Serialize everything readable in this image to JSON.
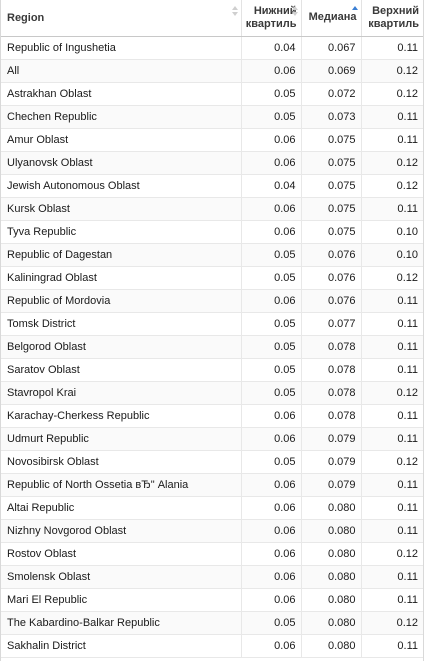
{
  "table": {
    "columns": [
      {
        "key": "region",
        "label": "Region",
        "sort": "none"
      },
      {
        "key": "lower",
        "label_line1": "Нижний",
        "label_line2": "квартиль",
        "sort": "none"
      },
      {
        "key": "median",
        "label": "Медиана",
        "sort": "ascending"
      },
      {
        "key": "upper",
        "label_line1": "Верхний",
        "label_line2": "квартиль",
        "sort": "none"
      }
    ],
    "rows": [
      {
        "region": "Republic of Ingushetia",
        "lower": "0.04",
        "median": "0.067",
        "upper": "0.11"
      },
      {
        "region": "All",
        "lower": "0.06",
        "median": "0.069",
        "upper": "0.12"
      },
      {
        "region": "Astrakhan Oblast",
        "lower": "0.05",
        "median": "0.072",
        "upper": "0.12"
      },
      {
        "region": "Chechen Republic",
        "lower": "0.05",
        "median": "0.073",
        "upper": "0.11"
      },
      {
        "region": "Amur Oblast",
        "lower": "0.06",
        "median": "0.075",
        "upper": "0.11"
      },
      {
        "region": "Ulyanovsk Oblast",
        "lower": "0.06",
        "median": "0.075",
        "upper": "0.12"
      },
      {
        "region": "Jewish Autonomous Oblast",
        "lower": "0.04",
        "median": "0.075",
        "upper": "0.12"
      },
      {
        "region": "Kursk Oblast",
        "lower": "0.06",
        "median": "0.075",
        "upper": "0.11"
      },
      {
        "region": "Tyva Republic",
        "lower": "0.06",
        "median": "0.075",
        "upper": "0.10"
      },
      {
        "region": "Republic of Dagestan",
        "lower": "0.05",
        "median": "0.076",
        "upper": "0.10"
      },
      {
        "region": "Kaliningrad Oblast",
        "lower": "0.05",
        "median": "0.076",
        "upper": "0.12"
      },
      {
        "region": "Republic of Mordovia",
        "lower": "0.06",
        "median": "0.076",
        "upper": "0.11"
      },
      {
        "region": "Tomsk District",
        "lower": "0.05",
        "median": "0.077",
        "upper": "0.11"
      },
      {
        "region": "Belgorod Oblast",
        "lower": "0.05",
        "median": "0.078",
        "upper": "0.11"
      },
      {
        "region": "Saratov Oblast",
        "lower": "0.05",
        "median": "0.078",
        "upper": "0.11"
      },
      {
        "region": "Stavropol Krai",
        "lower": "0.05",
        "median": "0.078",
        "upper": "0.12"
      },
      {
        "region": "Karachay-Cherkess Republic",
        "lower": "0.06",
        "median": "0.078",
        "upper": "0.11"
      },
      {
        "region": "Udmurt Republic",
        "lower": "0.06",
        "median": "0.079",
        "upper": "0.11"
      },
      {
        "region": "Novosibirsk Oblast",
        "lower": "0.05",
        "median": "0.079",
        "upper": "0.12"
      },
      {
        "region": "Republic of North Ossetia вЂ\" Alania",
        "lower": "0.06",
        "median": "0.079",
        "upper": "0.11"
      },
      {
        "region": "Altai Republic",
        "lower": "0.06",
        "median": "0.080",
        "upper": "0.11"
      },
      {
        "region": "Nizhny Novgorod Oblast",
        "lower": "0.06",
        "median": "0.080",
        "upper": "0.11"
      },
      {
        "region": "Rostov Oblast",
        "lower": "0.06",
        "median": "0.080",
        "upper": "0.12"
      },
      {
        "region": "Smolensk Oblast",
        "lower": "0.06",
        "median": "0.080",
        "upper": "0.11"
      },
      {
        "region": "Mari El Republic",
        "lower": "0.06",
        "median": "0.080",
        "upper": "0.11"
      },
      {
        "region": "The Kabardino-Balkar Republic",
        "lower": "0.05",
        "median": "0.080",
        "upper": "0.12"
      },
      {
        "region": "Sakhalin District",
        "lower": "0.06",
        "median": "0.080",
        "upper": "0.11"
      }
    ]
  },
  "colors": {
    "sort_active": "#3b7fd4",
    "sort_inactive": "#cfcfcf",
    "border": "#e8e8e8",
    "header_border": "#c8c8c8"
  }
}
